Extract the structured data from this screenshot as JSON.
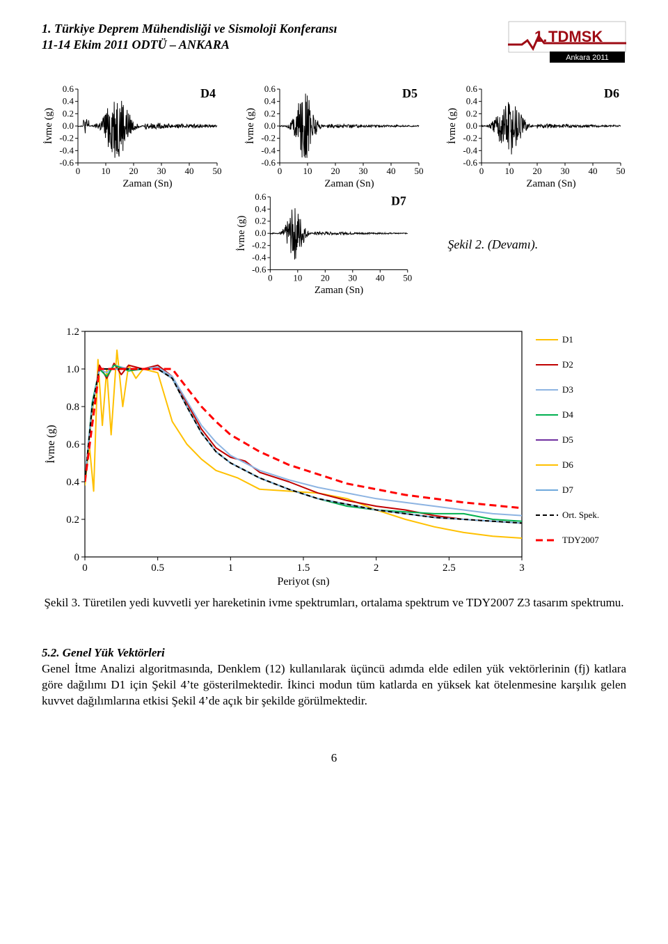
{
  "header": {
    "line1": "1. Türkiye Deprem Mühendisliği ve Sismoloji Konferansı",
    "line2": "11-14 Ekim 2011 ODTÜ – ANKARA"
  },
  "logo": {
    "main": "TDMSK",
    "sub": "Ankara 2011",
    "one": "1.",
    "bg_color": "#ffffff",
    "border_color": "#9e0b14",
    "wave_color": "#9e0b14",
    "text_color": "#9e0b14",
    "sub_bg": "#000000",
    "sub_fg": "#ffffff"
  },
  "small_charts": {
    "ylabel": "İvme (g)",
    "xlabel": "Zaman (Sn)",
    "xlim": [
      0,
      50
    ],
    "xtick_step": 10,
    "ylim": [
      -0.6,
      0.6
    ],
    "ytick_step": 0.2,
    "line_color": "#000000",
    "line_width": 1,
    "axis_color": "#000000",
    "tick_fontsize": 13,
    "label_fontsize": 15,
    "series_label_fontsize": 18,
    "series_label_weight": "bold",
    "items": [
      {
        "label": "D4",
        "burst_center": 14,
        "burst_width": 10,
        "amp": 0.55,
        "tail_amp": 0.08
      },
      {
        "label": "D5",
        "burst_center": 9,
        "burst_width": 8,
        "amp": 0.55,
        "tail_amp": 0.05
      },
      {
        "label": "D6",
        "burst_center": 10,
        "burst_width": 10,
        "amp": 0.5,
        "tail_amp": 0.06
      },
      {
        "label": "D7",
        "burst_center": 9,
        "burst_width": 7,
        "amp": 0.45,
        "tail_amp": 0.04
      }
    ]
  },
  "caption_side": "Şekil 2. (Devamı).",
  "spectrum_chart": {
    "type": "line",
    "xlabel": "Periyot (sn)",
    "ylabel": "İvme (g)",
    "xlim": [
      0,
      3
    ],
    "xtick_step": 0.5,
    "ylim": [
      0,
      1.2
    ],
    "ytick_step": 0.2,
    "label_fontsize": 16,
    "tick_fontsize": 15,
    "grid_color": "none",
    "axis_color": "#000000",
    "line_width": 2,
    "background_color": "#ffffff",
    "legend_fontsize": 13,
    "legend_pos": "right",
    "series": [
      {
        "key": "D1",
        "label": "D1",
        "color": "#ffc000",
        "dash": null,
        "points": [
          [
            0,
            0.38
          ],
          [
            0.03,
            0.6
          ],
          [
            0.06,
            0.35
          ],
          [
            0.09,
            1.05
          ],
          [
            0.12,
            0.7
          ],
          [
            0.15,
            1.0
          ],
          [
            0.18,
            0.65
          ],
          [
            0.22,
            1.1
          ],
          [
            0.26,
            0.8
          ],
          [
            0.3,
            1.02
          ],
          [
            0.35,
            0.95
          ],
          [
            0.4,
            1.0
          ],
          [
            0.5,
            0.98
          ],
          [
            0.6,
            0.72
          ],
          [
            0.7,
            0.6
          ],
          [
            0.8,
            0.52
          ],
          [
            0.9,
            0.46
          ],
          [
            1.05,
            0.42
          ],
          [
            1.2,
            0.36
          ],
          [
            1.4,
            0.35
          ],
          [
            1.6,
            0.34
          ],
          [
            1.8,
            0.31
          ],
          [
            2.0,
            0.25
          ],
          [
            2.2,
            0.2
          ],
          [
            2.4,
            0.16
          ],
          [
            2.6,
            0.13
          ],
          [
            2.8,
            0.11
          ],
          [
            3.0,
            0.1
          ]
        ]
      },
      {
        "key": "D2",
        "label": "D2",
        "color": "#c00000",
        "dash": null,
        "points": [
          [
            0,
            0.4
          ],
          [
            0.05,
            0.78
          ],
          [
            0.1,
            1.02
          ],
          [
            0.15,
            0.95
          ],
          [
            0.2,
            1.03
          ],
          [
            0.25,
            0.97
          ],
          [
            0.3,
            1.02
          ],
          [
            0.4,
            1.0
          ],
          [
            0.5,
            1.02
          ],
          [
            0.6,
            0.96
          ],
          [
            0.7,
            0.82
          ],
          [
            0.8,
            0.68
          ],
          [
            0.9,
            0.58
          ],
          [
            1.0,
            0.53
          ],
          [
            1.1,
            0.51
          ],
          [
            1.2,
            0.45
          ],
          [
            1.4,
            0.4
          ],
          [
            1.6,
            0.34
          ],
          [
            1.8,
            0.3
          ],
          [
            2.0,
            0.27
          ],
          [
            2.2,
            0.25
          ],
          [
            2.4,
            0.22
          ],
          [
            2.6,
            0.2
          ],
          [
            2.8,
            0.19
          ],
          [
            3.0,
            0.18
          ]
        ]
      },
      {
        "key": "D3",
        "label": "D3",
        "color": "#8db4e2",
        "dash": null,
        "points": [
          [
            0,
            0.4
          ],
          [
            0.05,
            0.8
          ],
          [
            0.1,
            1.0
          ],
          [
            0.15,
            0.98
          ],
          [
            0.2,
            1.02
          ],
          [
            0.3,
            1.0
          ],
          [
            0.4,
            1.0
          ],
          [
            0.5,
            1.01
          ],
          [
            0.6,
            0.96
          ],
          [
            0.7,
            0.83
          ],
          [
            0.8,
            0.7
          ],
          [
            0.9,
            0.61
          ],
          [
            1.0,
            0.54
          ],
          [
            1.2,
            0.46
          ],
          [
            1.4,
            0.41
          ],
          [
            1.6,
            0.37
          ],
          [
            1.8,
            0.34
          ],
          [
            2.0,
            0.31
          ],
          [
            2.2,
            0.29
          ],
          [
            2.4,
            0.27
          ],
          [
            2.6,
            0.25
          ],
          [
            2.8,
            0.23
          ],
          [
            3.0,
            0.22
          ]
        ]
      },
      {
        "key": "D4",
        "label": "D4",
        "color": "#00b050",
        "dash": null,
        "points": [
          [
            0,
            0.4
          ],
          [
            0.05,
            0.82
          ],
          [
            0.1,
            1.0
          ],
          [
            0.15,
            0.96
          ],
          [
            0.2,
            1.02
          ],
          [
            0.3,
            0.99
          ],
          [
            0.4,
            1.0
          ],
          [
            0.5,
            1.0
          ],
          [
            0.6,
            0.95
          ],
          [
            0.7,
            0.8
          ],
          [
            0.8,
            0.66
          ],
          [
            0.9,
            0.56
          ],
          [
            1.0,
            0.5
          ],
          [
            1.2,
            0.42
          ],
          [
            1.4,
            0.36
          ],
          [
            1.6,
            0.31
          ],
          [
            1.8,
            0.27
          ],
          [
            2.0,
            0.25
          ],
          [
            2.2,
            0.24
          ],
          [
            2.4,
            0.23
          ],
          [
            2.6,
            0.23
          ],
          [
            2.8,
            0.2
          ],
          [
            3.0,
            0.19
          ]
        ]
      },
      {
        "key": "D5",
        "label": "D5",
        "color": "#7030a0",
        "dash": null,
        "points": [
          [
            0,
            0.4
          ],
          [
            0.05,
            0.8
          ],
          [
            0.1,
            1.0
          ],
          [
            0.2,
            1.0
          ],
          [
            0.3,
            1.0
          ],
          [
            0.4,
            1.0
          ],
          [
            0.5,
            1.0
          ],
          [
            0.6,
            0.95
          ],
          [
            0.7,
            0.8
          ],
          [
            0.8,
            0.66
          ],
          [
            0.9,
            0.56
          ],
          [
            1.0,
            0.5
          ],
          [
            1.2,
            0.42
          ],
          [
            1.4,
            0.36
          ],
          [
            1.6,
            0.31
          ],
          [
            1.8,
            0.28
          ],
          [
            2.0,
            0.25
          ],
          [
            2.2,
            0.23
          ],
          [
            2.4,
            0.21
          ],
          [
            2.6,
            0.2
          ],
          [
            2.8,
            0.19
          ],
          [
            3.0,
            0.18
          ]
        ]
      },
      {
        "key": "D6",
        "label": "D6",
        "color": "#ffc000",
        "dash": null,
        "points": [
          [
            0,
            0.4
          ],
          [
            0.05,
            0.78
          ],
          [
            0.1,
            1.0
          ],
          [
            0.2,
            1.0
          ],
          [
            0.3,
            1.0
          ],
          [
            0.4,
            1.0
          ],
          [
            0.5,
            1.0
          ],
          [
            0.6,
            0.95
          ],
          [
            0.7,
            0.8
          ],
          [
            0.8,
            0.66
          ],
          [
            0.9,
            0.56
          ],
          [
            1.0,
            0.5
          ],
          [
            1.2,
            0.42
          ],
          [
            1.4,
            0.36
          ],
          [
            1.6,
            0.31
          ],
          [
            1.8,
            0.28
          ],
          [
            2.0,
            0.25
          ],
          [
            2.4,
            0.21
          ],
          [
            2.8,
            0.19
          ],
          [
            3.0,
            0.18
          ]
        ]
      },
      {
        "key": "D7",
        "label": "D7",
        "color": "#6ea8dc",
        "dash": null,
        "points": [
          [
            0,
            0.4
          ],
          [
            0.05,
            0.8
          ],
          [
            0.1,
            1.0
          ],
          [
            0.2,
            1.0
          ],
          [
            0.3,
            1.0
          ],
          [
            0.4,
            1.0
          ],
          [
            0.5,
            1.0
          ],
          [
            0.6,
            0.95
          ],
          [
            0.7,
            0.8
          ],
          [
            0.8,
            0.66
          ],
          [
            0.9,
            0.56
          ],
          [
            1.0,
            0.5
          ],
          [
            1.2,
            0.42
          ],
          [
            1.4,
            0.36
          ],
          [
            1.6,
            0.31
          ],
          [
            1.8,
            0.28
          ],
          [
            2.0,
            0.25
          ],
          [
            2.4,
            0.21
          ],
          [
            2.8,
            0.19
          ],
          [
            3.0,
            0.18
          ]
        ]
      },
      {
        "key": "ORT",
        "label": "Ort. Spek.",
        "color": "#000000",
        "dash": "6,4",
        "points": [
          [
            0,
            0.4
          ],
          [
            0.05,
            0.8
          ],
          [
            0.1,
            1.0
          ],
          [
            0.2,
            1.0
          ],
          [
            0.3,
            1.0
          ],
          [
            0.4,
            1.0
          ],
          [
            0.5,
            1.0
          ],
          [
            0.6,
            0.95
          ],
          [
            0.7,
            0.8
          ],
          [
            0.8,
            0.66
          ],
          [
            0.9,
            0.56
          ],
          [
            1.0,
            0.5
          ],
          [
            1.2,
            0.42
          ],
          [
            1.4,
            0.36
          ],
          [
            1.6,
            0.31
          ],
          [
            1.8,
            0.28
          ],
          [
            2.0,
            0.25
          ],
          [
            2.2,
            0.23
          ],
          [
            2.4,
            0.21
          ],
          [
            2.6,
            0.2
          ],
          [
            2.8,
            0.19
          ],
          [
            3.0,
            0.18
          ]
        ]
      },
      {
        "key": "TDY",
        "label": "TDY2007",
        "color": "#ff0000",
        "dash": "10,6",
        "line_width": 3,
        "points": [
          [
            0,
            0.4
          ],
          [
            0.1,
            1.0
          ],
          [
            0.2,
            1.0
          ],
          [
            0.3,
            1.0
          ],
          [
            0.4,
            1.0
          ],
          [
            0.5,
            1.0
          ],
          [
            0.6,
            1.0
          ],
          [
            0.7,
            0.9
          ],
          [
            0.8,
            0.8
          ],
          [
            0.9,
            0.72
          ],
          [
            1.0,
            0.65
          ],
          [
            1.2,
            0.56
          ],
          [
            1.4,
            0.49
          ],
          [
            1.6,
            0.44
          ],
          [
            1.8,
            0.39
          ],
          [
            2.0,
            0.36
          ],
          [
            2.2,
            0.33
          ],
          [
            2.4,
            0.31
          ],
          [
            2.6,
            0.29
          ],
          [
            2.8,
            0.275
          ],
          [
            3.0,
            0.26
          ]
        ]
      }
    ]
  },
  "big_caption": "Şekil 3. Türetilen yedi kuvvetli yer hareketinin ivme spektrumları, ortalama spektrum ve TDY2007 Z3 tasarım spektrumu.",
  "section": {
    "number": "5.2.",
    "title": "Genel Yük Vektörleri",
    "body": "Genel İtme Analizi algoritmasında, Denklem (12) kullanılarak  üçüncü adımda elde edilen yük vektörlerinin (fj) katlara göre dağılımı D1 için Şekil 4’te gösterilmektedir. İkinci modun tüm katlarda en yüksek kat ötelenmesine karşılık gelen kuvvet dağılımlarına etkisi Şekil 4’de açık bir şekilde görülmektedir."
  },
  "page_number": "6"
}
